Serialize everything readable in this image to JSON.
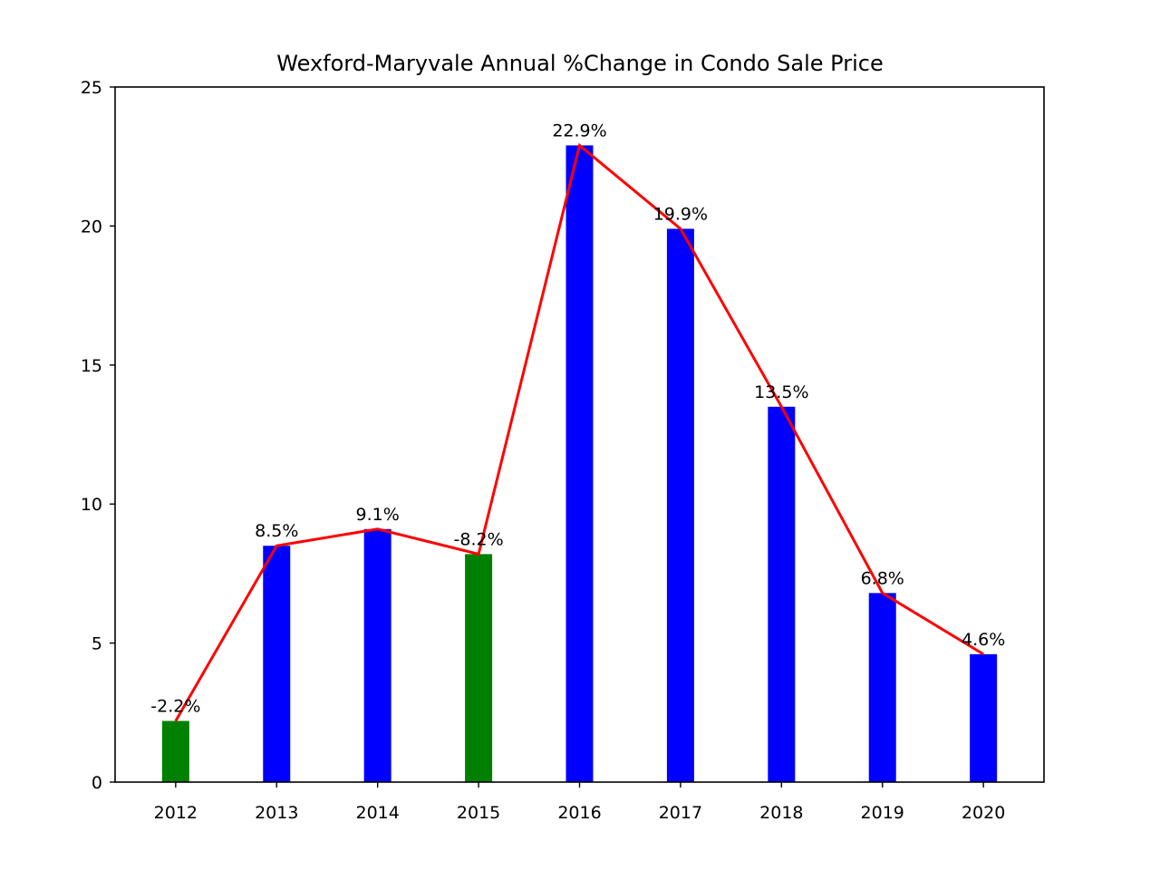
{
  "chart_data": {
    "type": "bar",
    "title": "Wexford-Maryvale Annual %Change in Condo Sale Price",
    "xlabel": "",
    "ylabel": "",
    "categories": [
      "2012",
      "2013",
      "2014",
      "2015",
      "2016",
      "2017",
      "2018",
      "2019",
      "2020"
    ],
    "values": [
      2.2,
      8.5,
      9.1,
      8.2,
      22.9,
      19.9,
      13.5,
      6.8,
      4.6
    ],
    "data_labels": [
      "-2.2%",
      "8.5%",
      "9.1%",
      "-8.2%",
      "22.9%",
      "19.9%",
      "13.5%",
      "6.8%",
      "4.6%"
    ],
    "bar_colors": [
      "#008000",
      "#0000ff",
      "#0000ff",
      "#008000",
      "#0000ff",
      "#0000ff",
      "#0000ff",
      "#0000ff",
      "#0000ff"
    ],
    "line": {
      "values": [
        2.2,
        8.5,
        9.1,
        8.2,
        22.9,
        19.9,
        13.5,
        6.8,
        4.6
      ],
      "color": "#ff0000"
    },
    "ylim": [
      0,
      25
    ],
    "yticks": [
      0,
      5,
      10,
      15,
      20,
      25
    ],
    "grid": false,
    "legend": "none"
  }
}
